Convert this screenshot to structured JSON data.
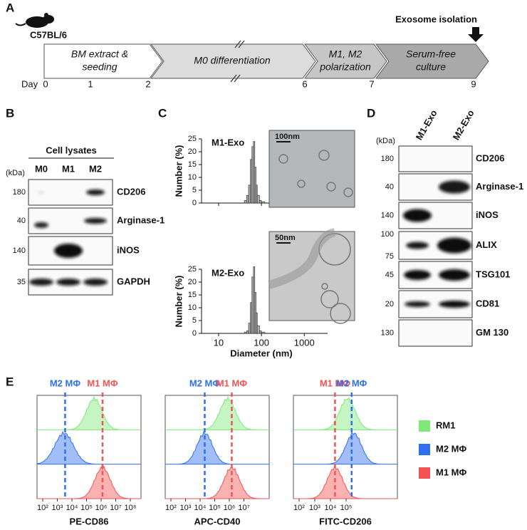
{
  "panel_labels": [
    "A",
    "B",
    "C",
    "D",
    "E"
  ],
  "timeline": {
    "strain": "C57BL/6",
    "event": "Exosome isolation",
    "stages": [
      [
        "BM extract &",
        "seeding"
      ],
      [
        "M0 differentiation"
      ],
      [
        "M1, M2",
        "polarization"
      ],
      [
        "Serum-free",
        "culture"
      ]
    ],
    "day_label": "Day",
    "days": [
      "0",
      "1",
      "2",
      "6",
      "7",
      "9"
    ]
  },
  "western_b": {
    "header": "Cell lysates",
    "unit": "(kDa)",
    "lanes": [
      "M0",
      "M1",
      "M2"
    ],
    "rows": [
      {
        "mw": "180",
        "protein": "CD206"
      },
      {
        "mw": "40",
        "protein": "Arginase-1"
      },
      {
        "mw": "140",
        "protein": "iNOS"
      },
      {
        "mw": "35",
        "protein": "GAPDH"
      }
    ]
  },
  "nta": {
    "y_label": "Number (%)",
    "x_label": "Diameter (nm)",
    "xlim": [
      4,
      3500
    ],
    "xticks": [
      10,
      100,
      1000
    ],
    "ylim": [
      0,
      25
    ],
    "yticks": [
      0,
      5,
      10,
      15,
      20,
      25
    ],
    "samples": [
      {
        "name": "M1-Exo",
        "scale_bar": "100nm",
        "bins": [
          40,
          45,
          50,
          55,
          60,
          65,
          70,
          75,
          80,
          90,
          100,
          120
        ],
        "counts": [
          1,
          3,
          7,
          17,
          22,
          24,
          14,
          7,
          3,
          1,
          0.5
        ]
      },
      {
        "name": "M2-Exo",
        "scale_bar": "50nm",
        "bins": [
          40,
          45,
          50,
          55,
          60,
          65,
          70,
          75,
          80,
          90,
          100,
          120
        ],
        "counts": [
          0.5,
          1,
          4,
          12,
          22,
          26,
          16,
          8,
          3,
          1,
          0.5
        ]
      }
    ]
  },
  "western_d": {
    "unit": "(kDa)",
    "lanes": [
      "M1-Exo",
      "M2-Exo"
    ],
    "rows": [
      {
        "mw": [
          "180"
        ],
        "protein": "CD206"
      },
      {
        "mw": [
          "40"
        ],
        "protein": "Arginase-1"
      },
      {
        "mw": [
          "140"
        ],
        "protein": "iNOS"
      },
      {
        "mw": [
          "100",
          "75"
        ],
        "protein": "ALIX"
      },
      {
        "mw": [
          "45"
        ],
        "protein": "TSG101"
      },
      {
        "mw": [
          "20"
        ],
        "protein": "CD81"
      },
      {
        "mw": [
          "130"
        ],
        "protein": "GM 130"
      }
    ]
  },
  "flow": {
    "plots": [
      {
        "x_label": "PE-CD86",
        "ticks": [
          "10²",
          "10³",
          "10⁴",
          "10⁵",
          "10⁶",
          "10⁷",
          "10⁸"
        ],
        "markers": [
          "M2 MΦ",
          "M1 MΦ"
        ]
      },
      {
        "x_label": "APC-CD40",
        "ticks": [
          "10²",
          "10³",
          "10⁴",
          "10⁵",
          "10⁶",
          "10⁷"
        ],
        "markers": [
          "M2 MΦ",
          "M1 MΦ"
        ]
      },
      {
        "x_label": "FITC-CD206",
        "ticks": [
          "10²",
          "10³",
          "10⁴",
          "10⁵"
        ],
        "markers": [
          "M1 MΦ",
          "M2 MΦ"
        ]
      }
    ],
    "legend": [
      {
        "name": "RM1",
        "color": "#7ee87a"
      },
      {
        "name": "M2 MΦ",
        "color": "#2f6ff0"
      },
      {
        "name": "M1 MΦ",
        "color": "#f25454"
      }
    ]
  }
}
